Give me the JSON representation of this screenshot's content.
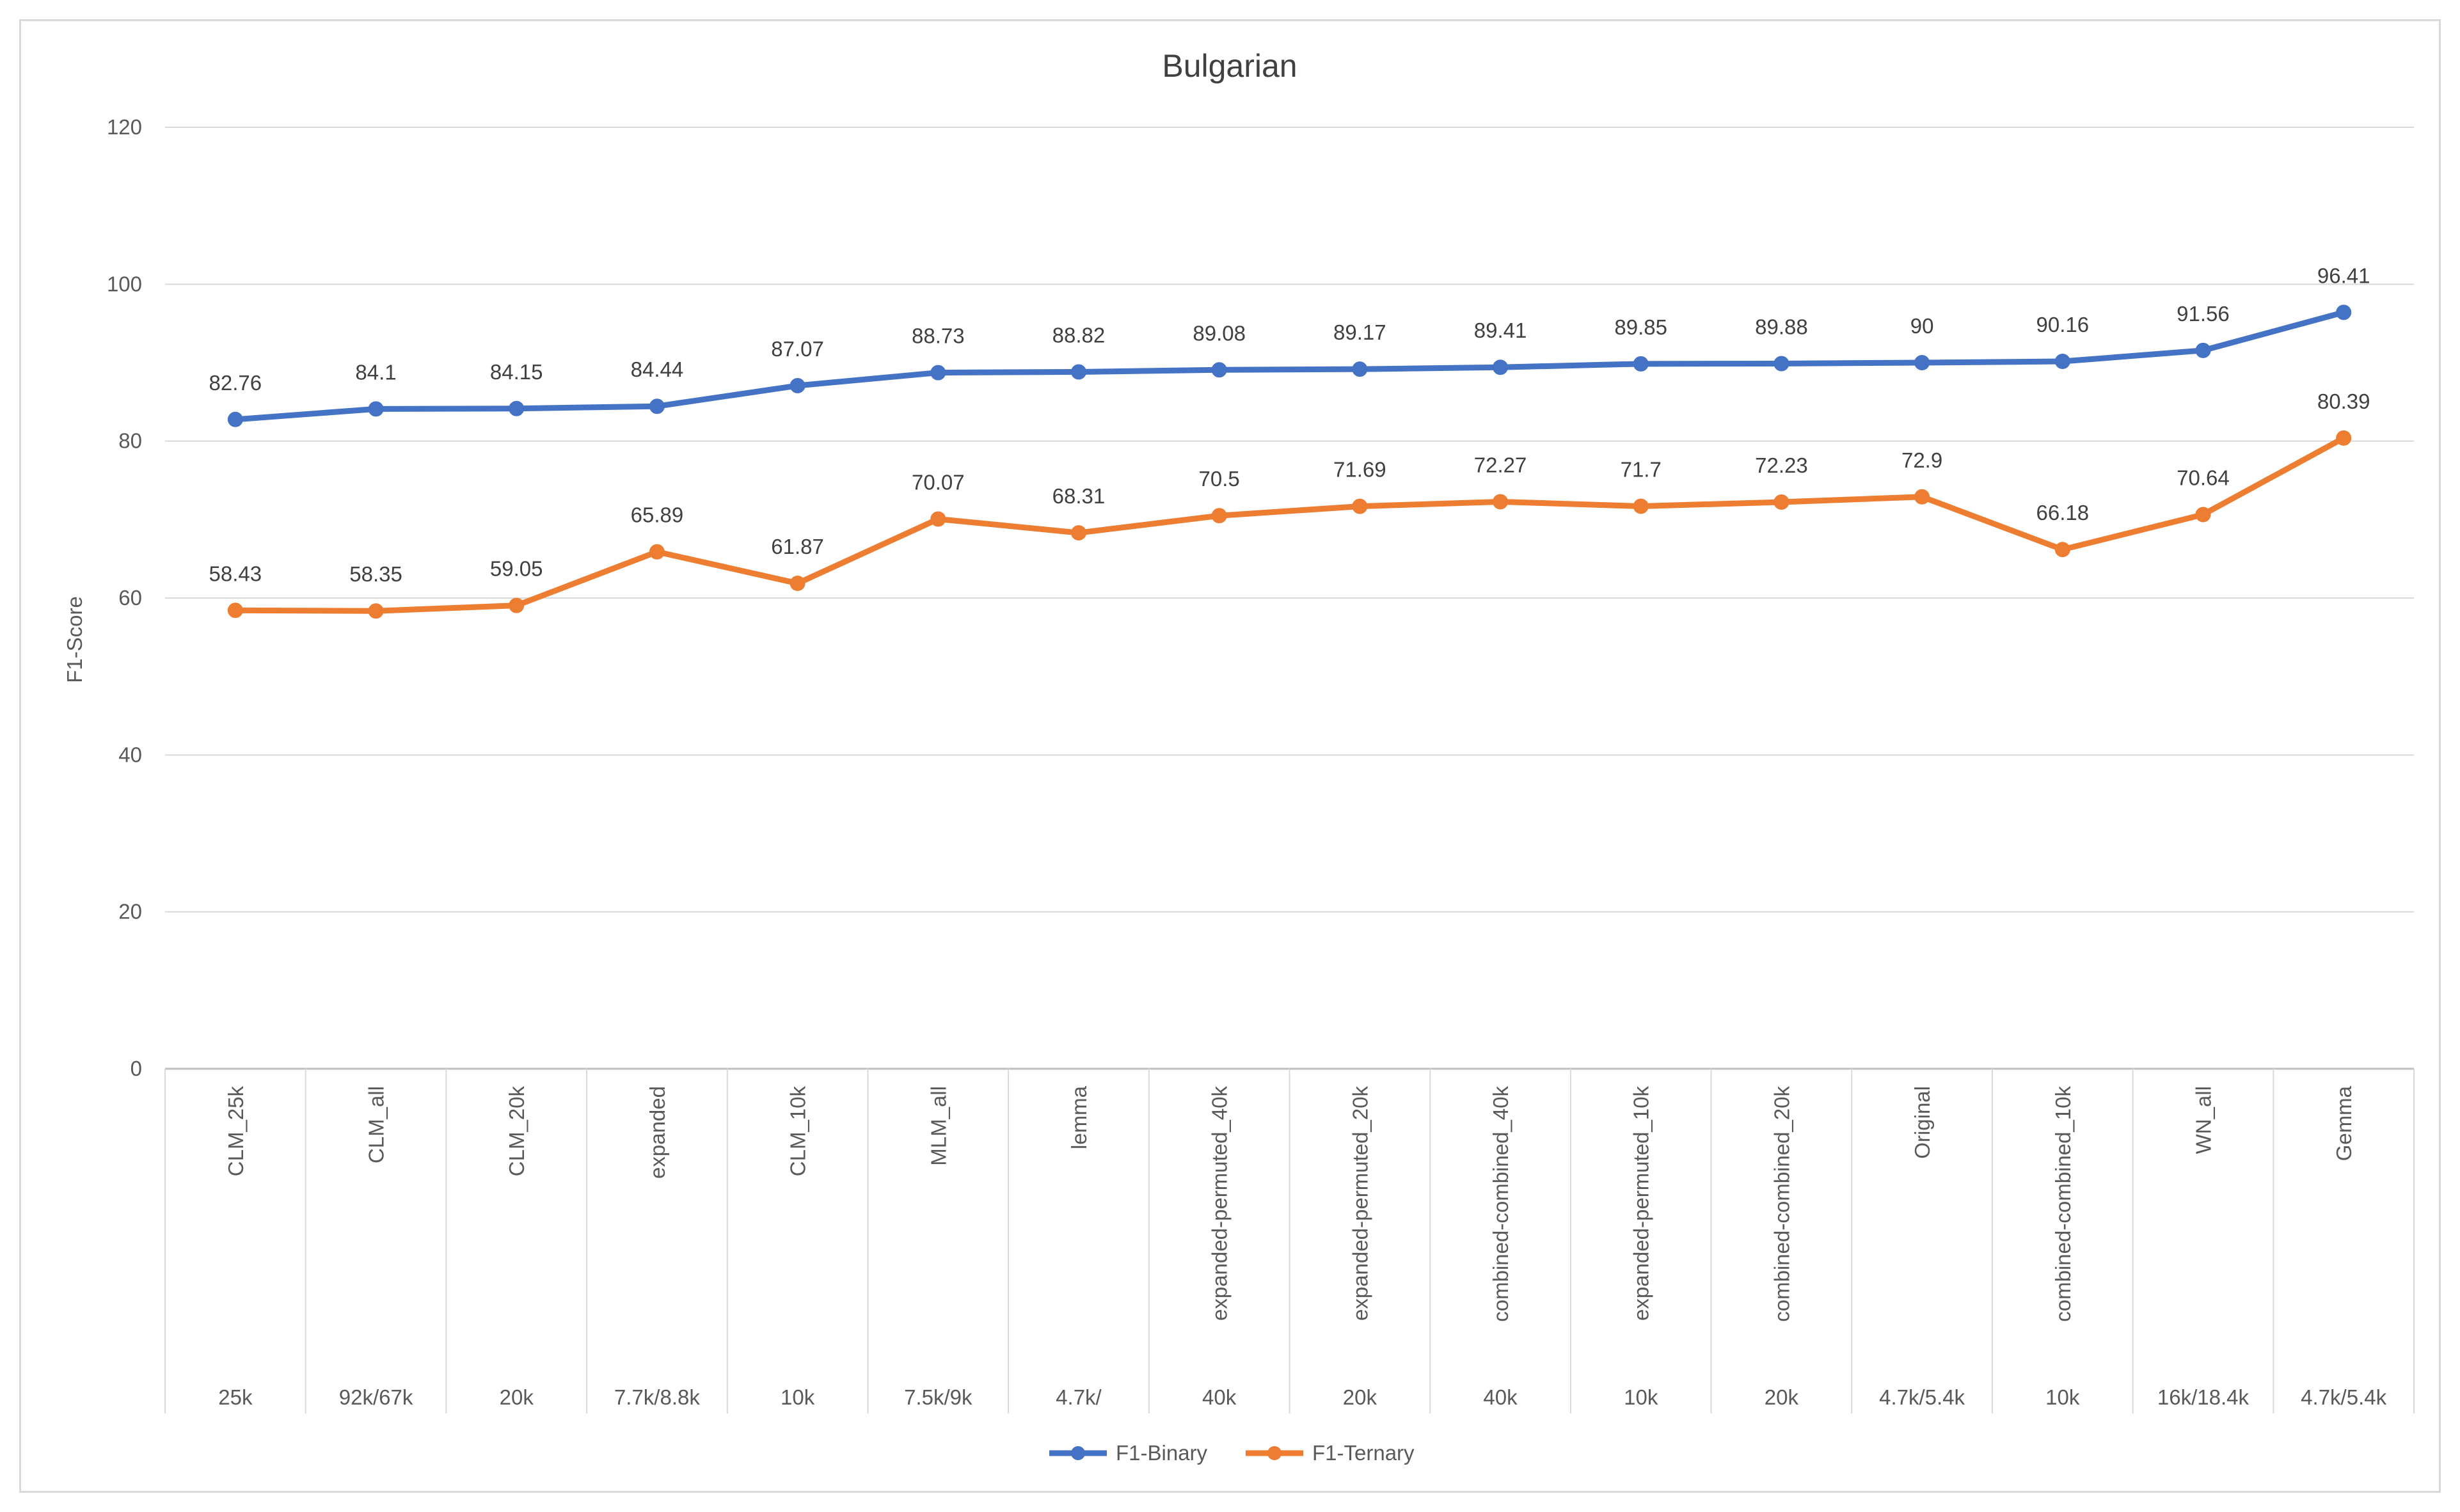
{
  "chart_data": {
    "type": "line",
    "title": "Bulgarian",
    "xlabel": "",
    "ylabel": "F1-Score",
    "ylim": [
      0,
      120
    ],
    "yticks": [
      0,
      20,
      40,
      60,
      80,
      100,
      120
    ],
    "grid": true,
    "legend_position": "bottom",
    "categories": [
      "CLM_25k",
      "CLM_all",
      "CLM_20k",
      "expanded",
      "CLM_10k",
      "MLM_all",
      "lemma",
      "expanded-permuted_40k",
      "expanded-permuted_20k",
      "combined-combined_40k",
      "expanded-permuted_10k",
      "combined-combined_20k",
      "Original",
      "combined-combined_10k",
      "WN_all",
      "Gemma"
    ],
    "sub_categories": [
      "25k",
      "92k/67k",
      "20k",
      "7.7k/8.8k",
      "10k",
      "7.5k/9k",
      "4.7k/",
      "40k",
      "20k",
      "40k",
      "10k",
      "20k",
      "4.7k/5.4k",
      "10k",
      "16k/18.4k",
      "4.7k/5.4k"
    ],
    "series": [
      {
        "name": "F1-Binary",
        "color": "#4472c4",
        "values": [
          82.76,
          84.1,
          84.15,
          84.44,
          87.07,
          88.73,
          88.82,
          89.08,
          89.17,
          89.41,
          89.85,
          89.88,
          90,
          90.16,
          91.56,
          96.41
        ]
      },
      {
        "name": "F1-Ternary",
        "color": "#ed7d31",
        "values": [
          58.43,
          58.35,
          59.05,
          65.89,
          61.87,
          70.07,
          68.31,
          70.5,
          71.69,
          72.27,
          71.7,
          72.23,
          72.9,
          66.18,
          70.64,
          80.39
        ]
      }
    ]
  }
}
